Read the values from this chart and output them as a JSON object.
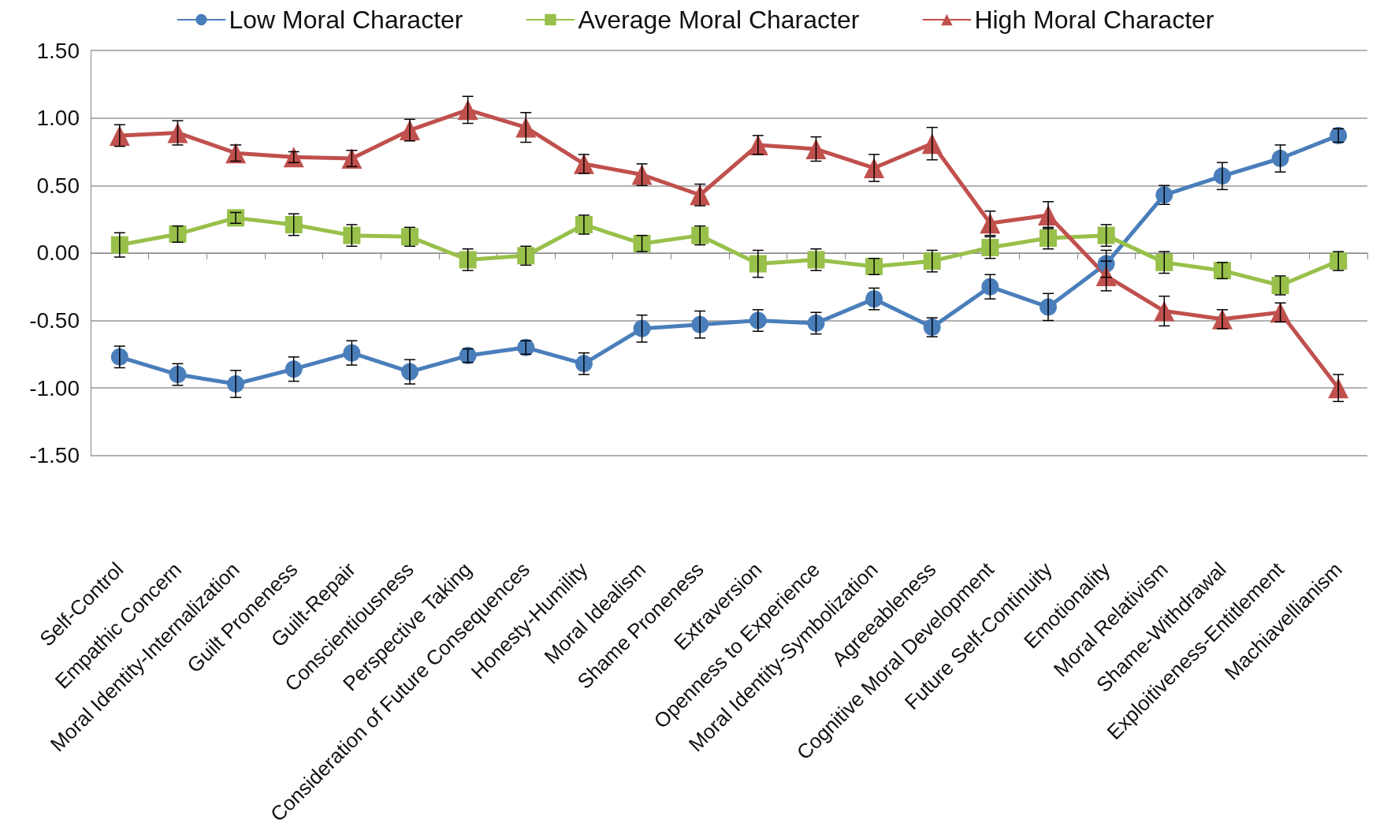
{
  "chart_data": {
    "type": "line",
    "categories": [
      "Self-Control",
      "Empathic Concern",
      "Moral Identity-Internalization",
      "Guilt Proneness",
      "Guilt-Repair",
      "Conscientiousness",
      "Perspective Taking",
      "Consideration of Future Consequences",
      "Honesty-Humility",
      "Moral Idealism",
      "Shame Proneness",
      "Extraversion",
      "Openness to Experience",
      "Moral Identity-Symbolization",
      "Agreeableness",
      "Cognitive Moral Development",
      "Future Self-Continuity",
      "Emotionality",
      "Moral Relativism",
      "Shame-Withdrawal",
      "Exploitiveness-Entitlement",
      "Machiavellianism"
    ],
    "series": [
      {
        "name": "Low Moral Character",
        "color": "#4a7ebb",
        "marker": "circle",
        "values": [
          -0.77,
          -0.9,
          -0.97,
          -0.86,
          -0.74,
          -0.88,
          -0.76,
          -0.7,
          -0.82,
          -0.56,
          -0.53,
          -0.5,
          -0.52,
          -0.34,
          -0.55,
          -0.25,
          -0.4,
          -0.08,
          0.43,
          0.57,
          0.7,
          0.87
        ],
        "errors": [
          0.08,
          0.08,
          0.1,
          0.09,
          0.09,
          0.09,
          0.05,
          0.05,
          0.08,
          0.1,
          0.1,
          0.08,
          0.08,
          0.08,
          0.07,
          0.09,
          0.1,
          0.1,
          0.07,
          0.1,
          0.1,
          0.05
        ]
      },
      {
        "name": "Average Moral Character",
        "color": "#98c04a",
        "marker": "square",
        "values": [
          0.06,
          0.14,
          0.26,
          0.21,
          0.13,
          0.12,
          -0.05,
          -0.02,
          0.21,
          0.07,
          0.13,
          -0.08,
          -0.05,
          -0.1,
          -0.06,
          0.04,
          0.11,
          0.13,
          -0.07,
          -0.13,
          -0.24,
          -0.06
        ],
        "errors": [
          0.09,
          0.06,
          0.04,
          0.08,
          0.08,
          0.07,
          0.08,
          0.07,
          0.07,
          0.06,
          0.07,
          0.1,
          0.08,
          0.06,
          0.08,
          0.08,
          0.08,
          0.08,
          0.08,
          0.06,
          0.07,
          0.07
        ]
      },
      {
        "name": "High Moral Character",
        "color": "#c0504d",
        "marker": "triangle",
        "values": [
          0.87,
          0.89,
          0.74,
          0.71,
          0.7,
          0.91,
          1.06,
          0.93,
          0.66,
          0.58,
          0.43,
          0.8,
          0.77,
          0.63,
          0.81,
          0.22,
          0.28,
          -0.17,
          -0.43,
          -0.49,
          -0.44,
          -1.0
        ],
        "errors": [
          0.08,
          0.09,
          0.06,
          0.04,
          0.06,
          0.08,
          0.1,
          0.11,
          0.07,
          0.08,
          0.08,
          0.07,
          0.09,
          0.1,
          0.12,
          0.09,
          0.1,
          0.11,
          0.11,
          0.07,
          0.07,
          0.1
        ]
      }
    ],
    "ylim": [
      -1.5,
      1.5
    ],
    "yticks": [
      {
        "value": -1.5,
        "label": "-1.50"
      },
      {
        "value": -1,
        "label": "-1.00"
      },
      {
        "value": -0.5,
        "label": "-0.50"
      },
      {
        "value": 0,
        "label": "0.00"
      },
      {
        "value": 0.5,
        "label": "0.50"
      },
      {
        "value": 1,
        "label": "1.00"
      },
      {
        "value": 1.5,
        "label": "1.50"
      }
    ],
    "grid": "y",
    "legend": "top",
    "line_style": "solid"
  }
}
